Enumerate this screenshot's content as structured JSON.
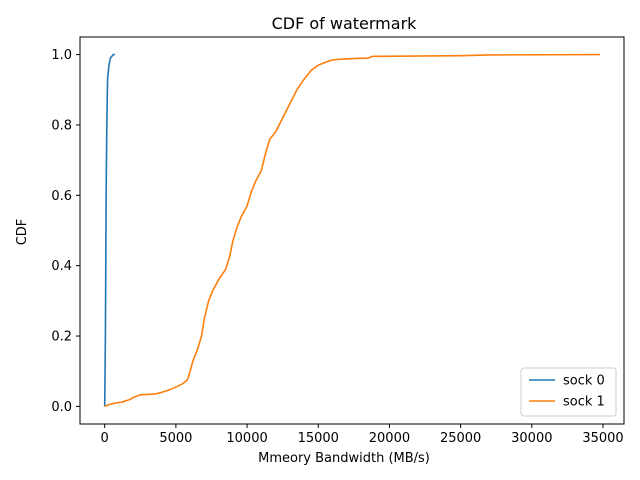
{
  "chart_data": {
    "type": "line",
    "title": "CDF of watermark",
    "xlabel": "Mmeory Bandwidth (MB/s)",
    "ylabel": "CDF",
    "xlim": [
      -1735,
      36475
    ],
    "ylim": [
      -0.05,
      1.05
    ],
    "xticks": [
      0,
      5000,
      10000,
      15000,
      20000,
      25000,
      30000,
      35000
    ],
    "xtick_labels": [
      "0",
      "5000",
      "10000",
      "15000",
      "20000",
      "25000",
      "30000",
      "35000"
    ],
    "yticks": [
      0.0,
      0.2,
      0.4,
      0.6,
      0.8,
      1.0
    ],
    "ytick_labels": [
      "0.0",
      "0.2",
      "0.4",
      "0.6",
      "0.8",
      "1.0"
    ],
    "grid": false,
    "legend": "lower-right",
    "series": [
      {
        "name": "sock 0",
        "color": "#1f77b4",
        "points": [
          [
            0,
            0
          ],
          [
            50,
            0.2
          ],
          [
            100,
            0.6
          ],
          [
            150,
            0.8
          ],
          [
            200,
            0.93
          ],
          [
            300,
            0.97
          ],
          [
            400,
            0.99
          ],
          [
            500,
            0.995
          ],
          [
            600,
            1.0
          ],
          [
            720,
            1.0
          ]
        ]
      },
      {
        "name": "sock 1",
        "color": "#ff7f0e",
        "points": [
          [
            0,
            0
          ],
          [
            300,
            0.005
          ],
          [
            800,
            0.01
          ],
          [
            1200,
            0.012
          ],
          [
            1800,
            0.02
          ],
          [
            2000,
            0.025
          ],
          [
            2500,
            0.033
          ],
          [
            3500,
            0.035
          ],
          [
            4000,
            0.04
          ],
          [
            4600,
            0.048
          ],
          [
            5000,
            0.055
          ],
          [
            5500,
            0.065
          ],
          [
            5800,
            0.075
          ],
          [
            6000,
            0.1
          ],
          [
            6200,
            0.13
          ],
          [
            6500,
            0.16
          ],
          [
            6800,
            0.2
          ],
          [
            7000,
            0.25
          ],
          [
            7300,
            0.3
          ],
          [
            7600,
            0.33
          ],
          [
            8000,
            0.36
          ],
          [
            8500,
            0.39
          ],
          [
            8800,
            0.43
          ],
          [
            9000,
            0.47
          ],
          [
            9300,
            0.51
          ],
          [
            9600,
            0.54
          ],
          [
            10000,
            0.57
          ],
          [
            10300,
            0.61
          ],
          [
            10600,
            0.64
          ],
          [
            11000,
            0.67
          ],
          [
            11300,
            0.72
          ],
          [
            11600,
            0.76
          ],
          [
            12000,
            0.78
          ],
          [
            12500,
            0.82
          ],
          [
            13000,
            0.86
          ],
          [
            13500,
            0.9
          ],
          [
            14000,
            0.93
          ],
          [
            14500,
            0.955
          ],
          [
            15000,
            0.97
          ],
          [
            15500,
            0.978
          ],
          [
            16000,
            0.985
          ],
          [
            17000,
            0.988
          ],
          [
            18500,
            0.99
          ],
          [
            18800,
            0.995
          ],
          [
            25000,
            0.997
          ],
          [
            27000,
            0.999
          ],
          [
            34800,
            1.0
          ]
        ]
      }
    ]
  }
}
